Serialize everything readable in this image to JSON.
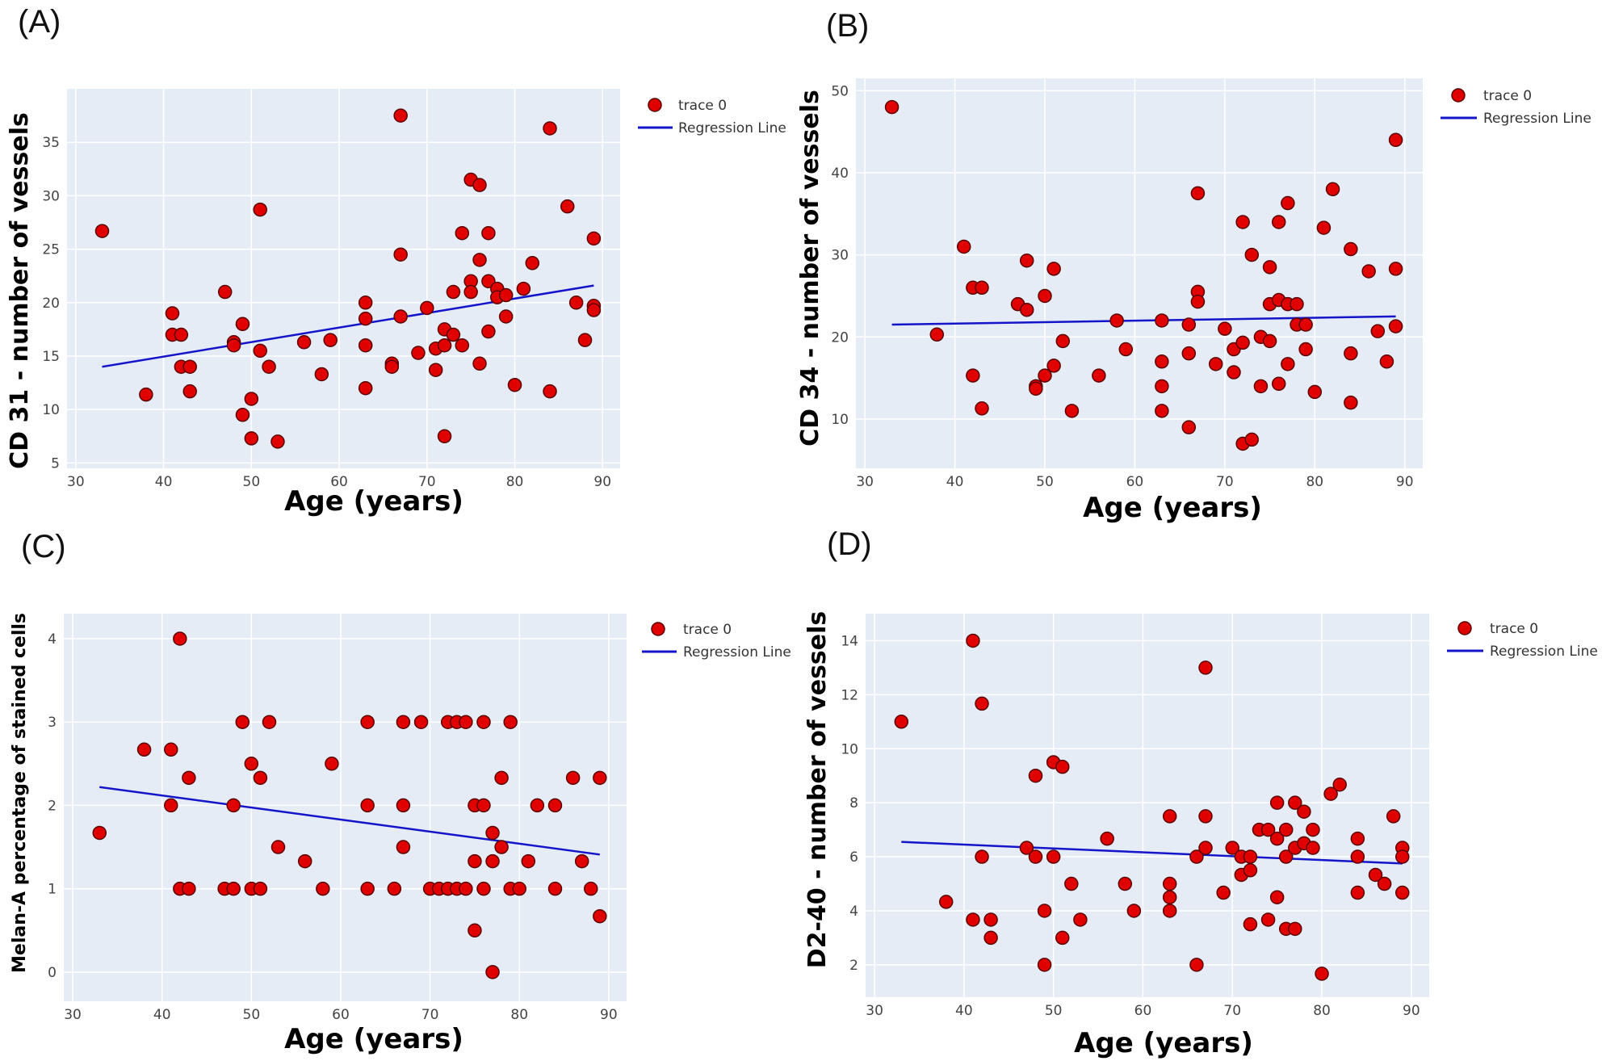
{
  "figure": {
    "panels": [
      "(A)",
      "(B)",
      "(C)",
      "(D)"
    ]
  },
  "colors": {
    "plot_background": "#e5ecf6",
    "grid": "#ffffff",
    "marker_fill": "#e00000",
    "marker_edge": "#5a0000",
    "regression_line": "#1414c8"
  },
  "legend": {
    "trace_label": "trace 0",
    "line_label": "Regression Line"
  },
  "chart_data": [
    {
      "panel": "(A)",
      "type": "scatter",
      "xlabel": "Age (years)",
      "ylabel": "CD 31 - number of vessels",
      "xlim": [
        29,
        92
      ],
      "ylim": [
        4.5,
        40
      ],
      "xticks": [
        30,
        40,
        50,
        60,
        70,
        80,
        90
      ],
      "yticks": [
        5,
        10,
        15,
        20,
        25,
        30,
        35
      ],
      "grid": true,
      "legend": [
        "trace 0",
        "Regression Line"
      ],
      "regression": {
        "x": [
          33,
          89
        ],
        "y": [
          14.0,
          21.6
        ]
      },
      "points": [
        [
          33,
          26.7
        ],
        [
          38,
          11.4
        ],
        [
          41,
          19.0
        ],
        [
          41,
          17.0
        ],
        [
          42,
          17.0
        ],
        [
          42,
          14.0
        ],
        [
          43,
          14.0
        ],
        [
          43,
          11.7
        ],
        [
          47,
          21.0
        ],
        [
          48,
          16.3
        ],
        [
          48,
          16.0
        ],
        [
          49,
          18.0
        ],
        [
          49,
          9.5
        ],
        [
          50,
          11.0
        ],
        [
          50,
          7.3
        ],
        [
          51,
          28.7
        ],
        [
          51,
          15.5
        ],
        [
          52,
          14.0
        ],
        [
          53,
          7.0
        ],
        [
          56,
          16.3
        ],
        [
          58,
          13.3
        ],
        [
          59,
          16.5
        ],
        [
          63,
          20.0
        ],
        [
          63,
          18.5
        ],
        [
          63,
          16.0
        ],
        [
          63,
          12.0
        ],
        [
          66,
          14.3
        ],
        [
          66,
          14.0
        ],
        [
          67,
          37.5
        ],
        [
          67,
          24.5
        ],
        [
          67,
          18.7
        ],
        [
          69,
          15.3
        ],
        [
          70,
          19.5
        ],
        [
          71,
          15.7
        ],
        [
          71,
          13.7
        ],
        [
          72,
          17.5
        ],
        [
          72,
          16.0
        ],
        [
          72,
          7.5
        ],
        [
          73,
          21.0
        ],
        [
          73,
          17.0
        ],
        [
          74,
          26.5
        ],
        [
          74,
          16.0
        ],
        [
          75,
          31.5
        ],
        [
          75,
          22.0
        ],
        [
          75,
          21.0
        ],
        [
          76,
          31.0
        ],
        [
          76,
          24.0
        ],
        [
          76,
          14.3
        ],
        [
          77,
          26.5
        ],
        [
          77,
          22.0
        ],
        [
          77,
          17.3
        ],
        [
          78,
          21.3
        ],
        [
          78,
          20.5
        ],
        [
          79,
          20.7
        ],
        [
          79,
          18.7
        ],
        [
          80,
          12.3
        ],
        [
          81,
          21.3
        ],
        [
          82,
          23.7
        ],
        [
          84,
          36.3
        ],
        [
          84,
          11.7
        ],
        [
          86,
          29.0
        ],
        [
          87,
          20.0
        ],
        [
          88,
          16.5
        ],
        [
          89,
          26.0
        ],
        [
          89,
          19.7
        ],
        [
          89,
          19.3
        ]
      ]
    },
    {
      "panel": "(B)",
      "type": "scatter",
      "xlabel": "Age (years)",
      "ylabel": "CD 34 - number of vessels",
      "xlim": [
        29,
        92
      ],
      "ylim": [
        4,
        51.5
      ],
      "xticks": [
        30,
        40,
        50,
        60,
        70,
        80,
        90
      ],
      "yticks": [
        10,
        20,
        30,
        40,
        50
      ],
      "grid": true,
      "legend": [
        "trace 0",
        "Regression Line"
      ],
      "regression": {
        "x": [
          33,
          89
        ],
        "y": [
          21.5,
          22.5
        ]
      },
      "points": [
        [
          33,
          48.0
        ],
        [
          38,
          20.3
        ],
        [
          41,
          31.0
        ],
        [
          42,
          26.0
        ],
        [
          42,
          15.3
        ],
        [
          43,
          26.0
        ],
        [
          43,
          11.3
        ],
        [
          47,
          24.0
        ],
        [
          48,
          29.3
        ],
        [
          48,
          23.3
        ],
        [
          49,
          14.0
        ],
        [
          49,
          13.7
        ],
        [
          50,
          25.0
        ],
        [
          50,
          15.3
        ],
        [
          51,
          28.3
        ],
        [
          51,
          16.5
        ],
        [
          52,
          19.5
        ],
        [
          53,
          11.0
        ],
        [
          56,
          15.3
        ],
        [
          58,
          22.0
        ],
        [
          59,
          18.5
        ],
        [
          63,
          22.0
        ],
        [
          63,
          17.0
        ],
        [
          63,
          14.0
        ],
        [
          63,
          11.0
        ],
        [
          66,
          21.5
        ],
        [
          66,
          18.0
        ],
        [
          66,
          9.0
        ],
        [
          67,
          37.5
        ],
        [
          67,
          25.5
        ],
        [
          67,
          24.3
        ],
        [
          69,
          16.7
        ],
        [
          70,
          21.0
        ],
        [
          71,
          18.5
        ],
        [
          71,
          15.7
        ],
        [
          72,
          34.0
        ],
        [
          72,
          19.3
        ],
        [
          72,
          7.0
        ],
        [
          73,
          30.0
        ],
        [
          73,
          7.5
        ],
        [
          74,
          20.0
        ],
        [
          74,
          14.0
        ],
        [
          75,
          28.5
        ],
        [
          75,
          24.0
        ],
        [
          75,
          19.5
        ],
        [
          76,
          34.0
        ],
        [
          76,
          24.5
        ],
        [
          76,
          14.3
        ],
        [
          77,
          36.3
        ],
        [
          77,
          24.0
        ],
        [
          77,
          16.7
        ],
        [
          78,
          24.0
        ],
        [
          78,
          21.5
        ],
        [
          79,
          21.5
        ],
        [
          79,
          18.5
        ],
        [
          80,
          13.3
        ],
        [
          81,
          33.3
        ],
        [
          82,
          38.0
        ],
        [
          84,
          30.7
        ],
        [
          84,
          18.0
        ],
        [
          84,
          12.0
        ],
        [
          86,
          28.0
        ],
        [
          87,
          20.7
        ],
        [
          88,
          17.0
        ],
        [
          89,
          44.0
        ],
        [
          89,
          28.3
        ],
        [
          89,
          21.3
        ]
      ]
    },
    {
      "panel": "(C)",
      "type": "scatter",
      "xlabel": "Age (years)",
      "ylabel": "Melan-A percentage of stained cells",
      "xlim": [
        29,
        92
      ],
      "ylim": [
        -0.35,
        4.3
      ],
      "xticks": [
        30,
        40,
        50,
        60,
        70,
        80,
        90
      ],
      "yticks": [
        0,
        1,
        2,
        3,
        4
      ],
      "grid": true,
      "legend": [
        "trace 0",
        "Regression Line"
      ],
      "regression": {
        "x": [
          33,
          89
        ],
        "y": [
          2.22,
          1.41
        ]
      },
      "points": [
        [
          33,
          1.67
        ],
        [
          38,
          2.67
        ],
        [
          41,
          2.67
        ],
        [
          41,
          2.0
        ],
        [
          42,
          4.0
        ],
        [
          42,
          1.0
        ],
        [
          43,
          2.33
        ],
        [
          43,
          1.0
        ],
        [
          47,
          1.0
        ],
        [
          48,
          2.0
        ],
        [
          48,
          1.0
        ],
        [
          49,
          3.0
        ],
        [
          50,
          2.5
        ],
        [
          50,
          1.0
        ],
        [
          51,
          2.33
        ],
        [
          51,
          1.0
        ],
        [
          52,
          3.0
        ],
        [
          53,
          1.5
        ],
        [
          56,
          1.33
        ],
        [
          58,
          1.0
        ],
        [
          59,
          2.5
        ],
        [
          63,
          3.0
        ],
        [
          63,
          2.0
        ],
        [
          63,
          1.0
        ],
        [
          66,
          1.0
        ],
        [
          67,
          3.0
        ],
        [
          67,
          2.0
        ],
        [
          67,
          1.5
        ],
        [
          69,
          3.0
        ],
        [
          70,
          1.0
        ],
        [
          71,
          1.0
        ],
        [
          72,
          3.0
        ],
        [
          72,
          1.0
        ],
        [
          73,
          3.0
        ],
        [
          73,
          1.0
        ],
        [
          74,
          3.0
        ],
        [
          74,
          1.0
        ],
        [
          75,
          2.0
        ],
        [
          75,
          1.33
        ],
        [
          75,
          0.5
        ],
        [
          76,
          3.0
        ],
        [
          76,
          2.0
        ],
        [
          76,
          1.0
        ],
        [
          77,
          1.67
        ],
        [
          77,
          1.33
        ],
        [
          77,
          0.0
        ],
        [
          78,
          2.33
        ],
        [
          78,
          1.5
        ],
        [
          79,
          3.0
        ],
        [
          79,
          1.0
        ],
        [
          80,
          1.0
        ],
        [
          81,
          1.33
        ],
        [
          82,
          2.0
        ],
        [
          84,
          2.0
        ],
        [
          84,
          1.0
        ],
        [
          86,
          2.33
        ],
        [
          87,
          1.33
        ],
        [
          88,
          1.0
        ],
        [
          89,
          2.33
        ],
        [
          89,
          0.67
        ]
      ]
    },
    {
      "panel": "(D)",
      "type": "scatter",
      "xlabel": "Age (years)",
      "ylabel": "D2-40 - number of vessels",
      "xlim": [
        29,
        92
      ],
      "ylim": [
        0.8,
        15.0
      ],
      "xticks": [
        30,
        40,
        50,
        60,
        70,
        80,
        90
      ],
      "yticks": [
        2,
        4,
        6,
        8,
        10,
        12,
        14
      ],
      "grid": true,
      "legend": [
        "trace 0",
        "Regression Line"
      ],
      "regression": {
        "x": [
          33,
          89
        ],
        "y": [
          6.55,
          5.75
        ]
      },
      "points": [
        [
          33,
          11.0
        ],
        [
          38,
          4.33
        ],
        [
          41,
          14.0
        ],
        [
          41,
          3.67
        ],
        [
          42,
          11.67
        ],
        [
          42,
          6.0
        ],
        [
          43,
          3.67
        ],
        [
          43,
          3.0
        ],
        [
          47,
          6.33
        ],
        [
          48,
          9.0
        ],
        [
          48,
          6.0
        ],
        [
          49,
          4.0
        ],
        [
          49,
          2.0
        ],
        [
          50,
          9.5
        ],
        [
          50,
          6.0
        ],
        [
          51,
          9.33
        ],
        [
          51,
          3.0
        ],
        [
          52,
          5.0
        ],
        [
          53,
          3.67
        ],
        [
          56,
          6.67
        ],
        [
          58,
          5.0
        ],
        [
          59,
          4.0
        ],
        [
          63,
          7.5
        ],
        [
          63,
          5.0
        ],
        [
          63,
          4.5
        ],
        [
          63,
          4.0
        ],
        [
          66,
          6.0
        ],
        [
          66,
          2.0
        ],
        [
          67,
          13.0
        ],
        [
          67,
          7.5
        ],
        [
          67,
          6.33
        ],
        [
          69,
          4.67
        ],
        [
          70,
          6.33
        ],
        [
          71,
          6.0
        ],
        [
          71,
          5.33
        ],
        [
          72,
          6.0
        ],
        [
          72,
          5.5
        ],
        [
          72,
          3.5
        ],
        [
          73,
          7.0
        ],
        [
          74,
          7.0
        ],
        [
          74,
          3.67
        ],
        [
          75,
          8.0
        ],
        [
          75,
          6.67
        ],
        [
          75,
          4.5
        ],
        [
          76,
          7.0
        ],
        [
          76,
          6.0
        ],
        [
          76,
          3.33
        ],
        [
          77,
          8.0
        ],
        [
          77,
          6.33
        ],
        [
          77,
          3.33
        ],
        [
          78,
          7.67
        ],
        [
          78,
          6.5
        ],
        [
          79,
          7.0
        ],
        [
          79,
          6.33
        ],
        [
          80,
          1.67
        ],
        [
          81,
          8.33
        ],
        [
          82,
          8.67
        ],
        [
          84,
          6.67
        ],
        [
          84,
          6.0
        ],
        [
          84,
          4.67
        ],
        [
          86,
          5.33
        ],
        [
          87,
          5.0
        ],
        [
          88,
          7.5
        ],
        [
          89,
          6.33
        ],
        [
          89,
          6.0
        ],
        [
          89,
          4.67
        ]
      ]
    }
  ]
}
